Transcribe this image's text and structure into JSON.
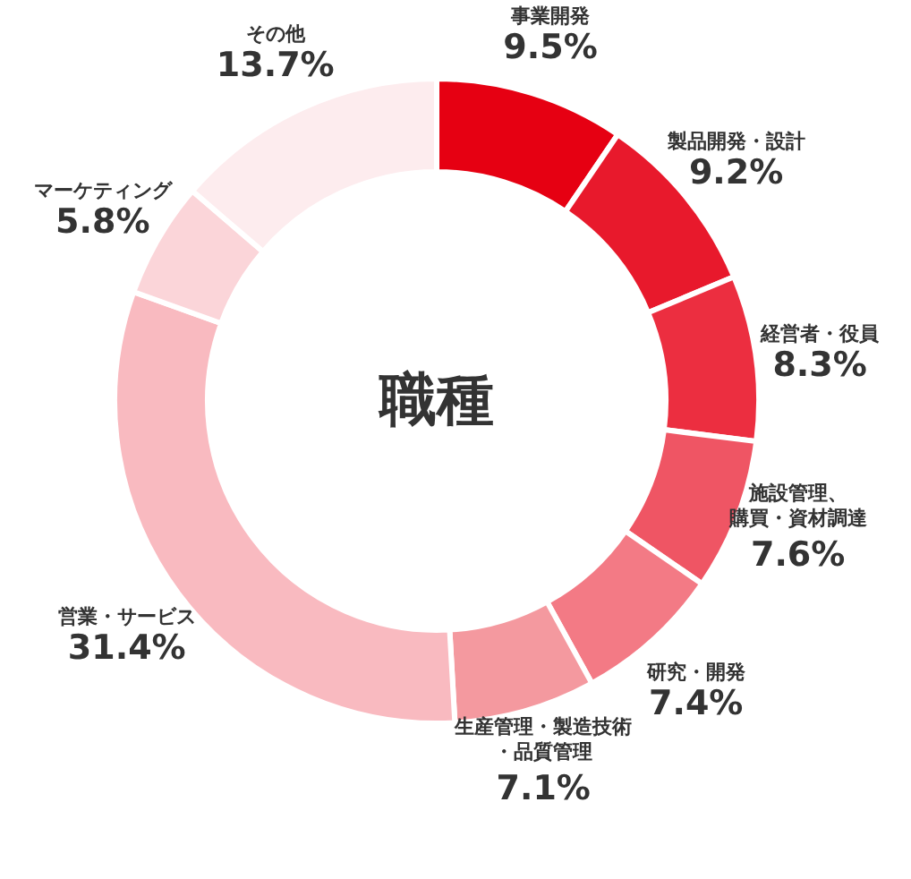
{
  "chart_data": {
    "type": "donut",
    "title": "職種",
    "categories": [
      "事業開発",
      "製品開発・設計",
      "経営者・役員",
      "施設管理、購買・資材調達",
      "研究・開発",
      "生産管理・製造技術・品質管理",
      "営業・サービス",
      "マーケティング",
      "その他"
    ],
    "values": [
      9.5,
      9.2,
      8.3,
      7.6,
      7.4,
      7.1,
      31.4,
      5.8,
      13.7
    ],
    "value_labels": [
      "9.5%",
      "9.2%",
      "8.3%",
      "7.6%",
      "7.4%",
      "7.1%",
      "31.4%",
      "5.8%",
      "13.7%"
    ],
    "colors": [
      "#e60012",
      "#e8192c",
      "#ec2e40",
      "#ef5564",
      "#f37a85",
      "#f4999f",
      "#f9bac0",
      "#fbd5d9",
      "#fdecee"
    ]
  }
}
